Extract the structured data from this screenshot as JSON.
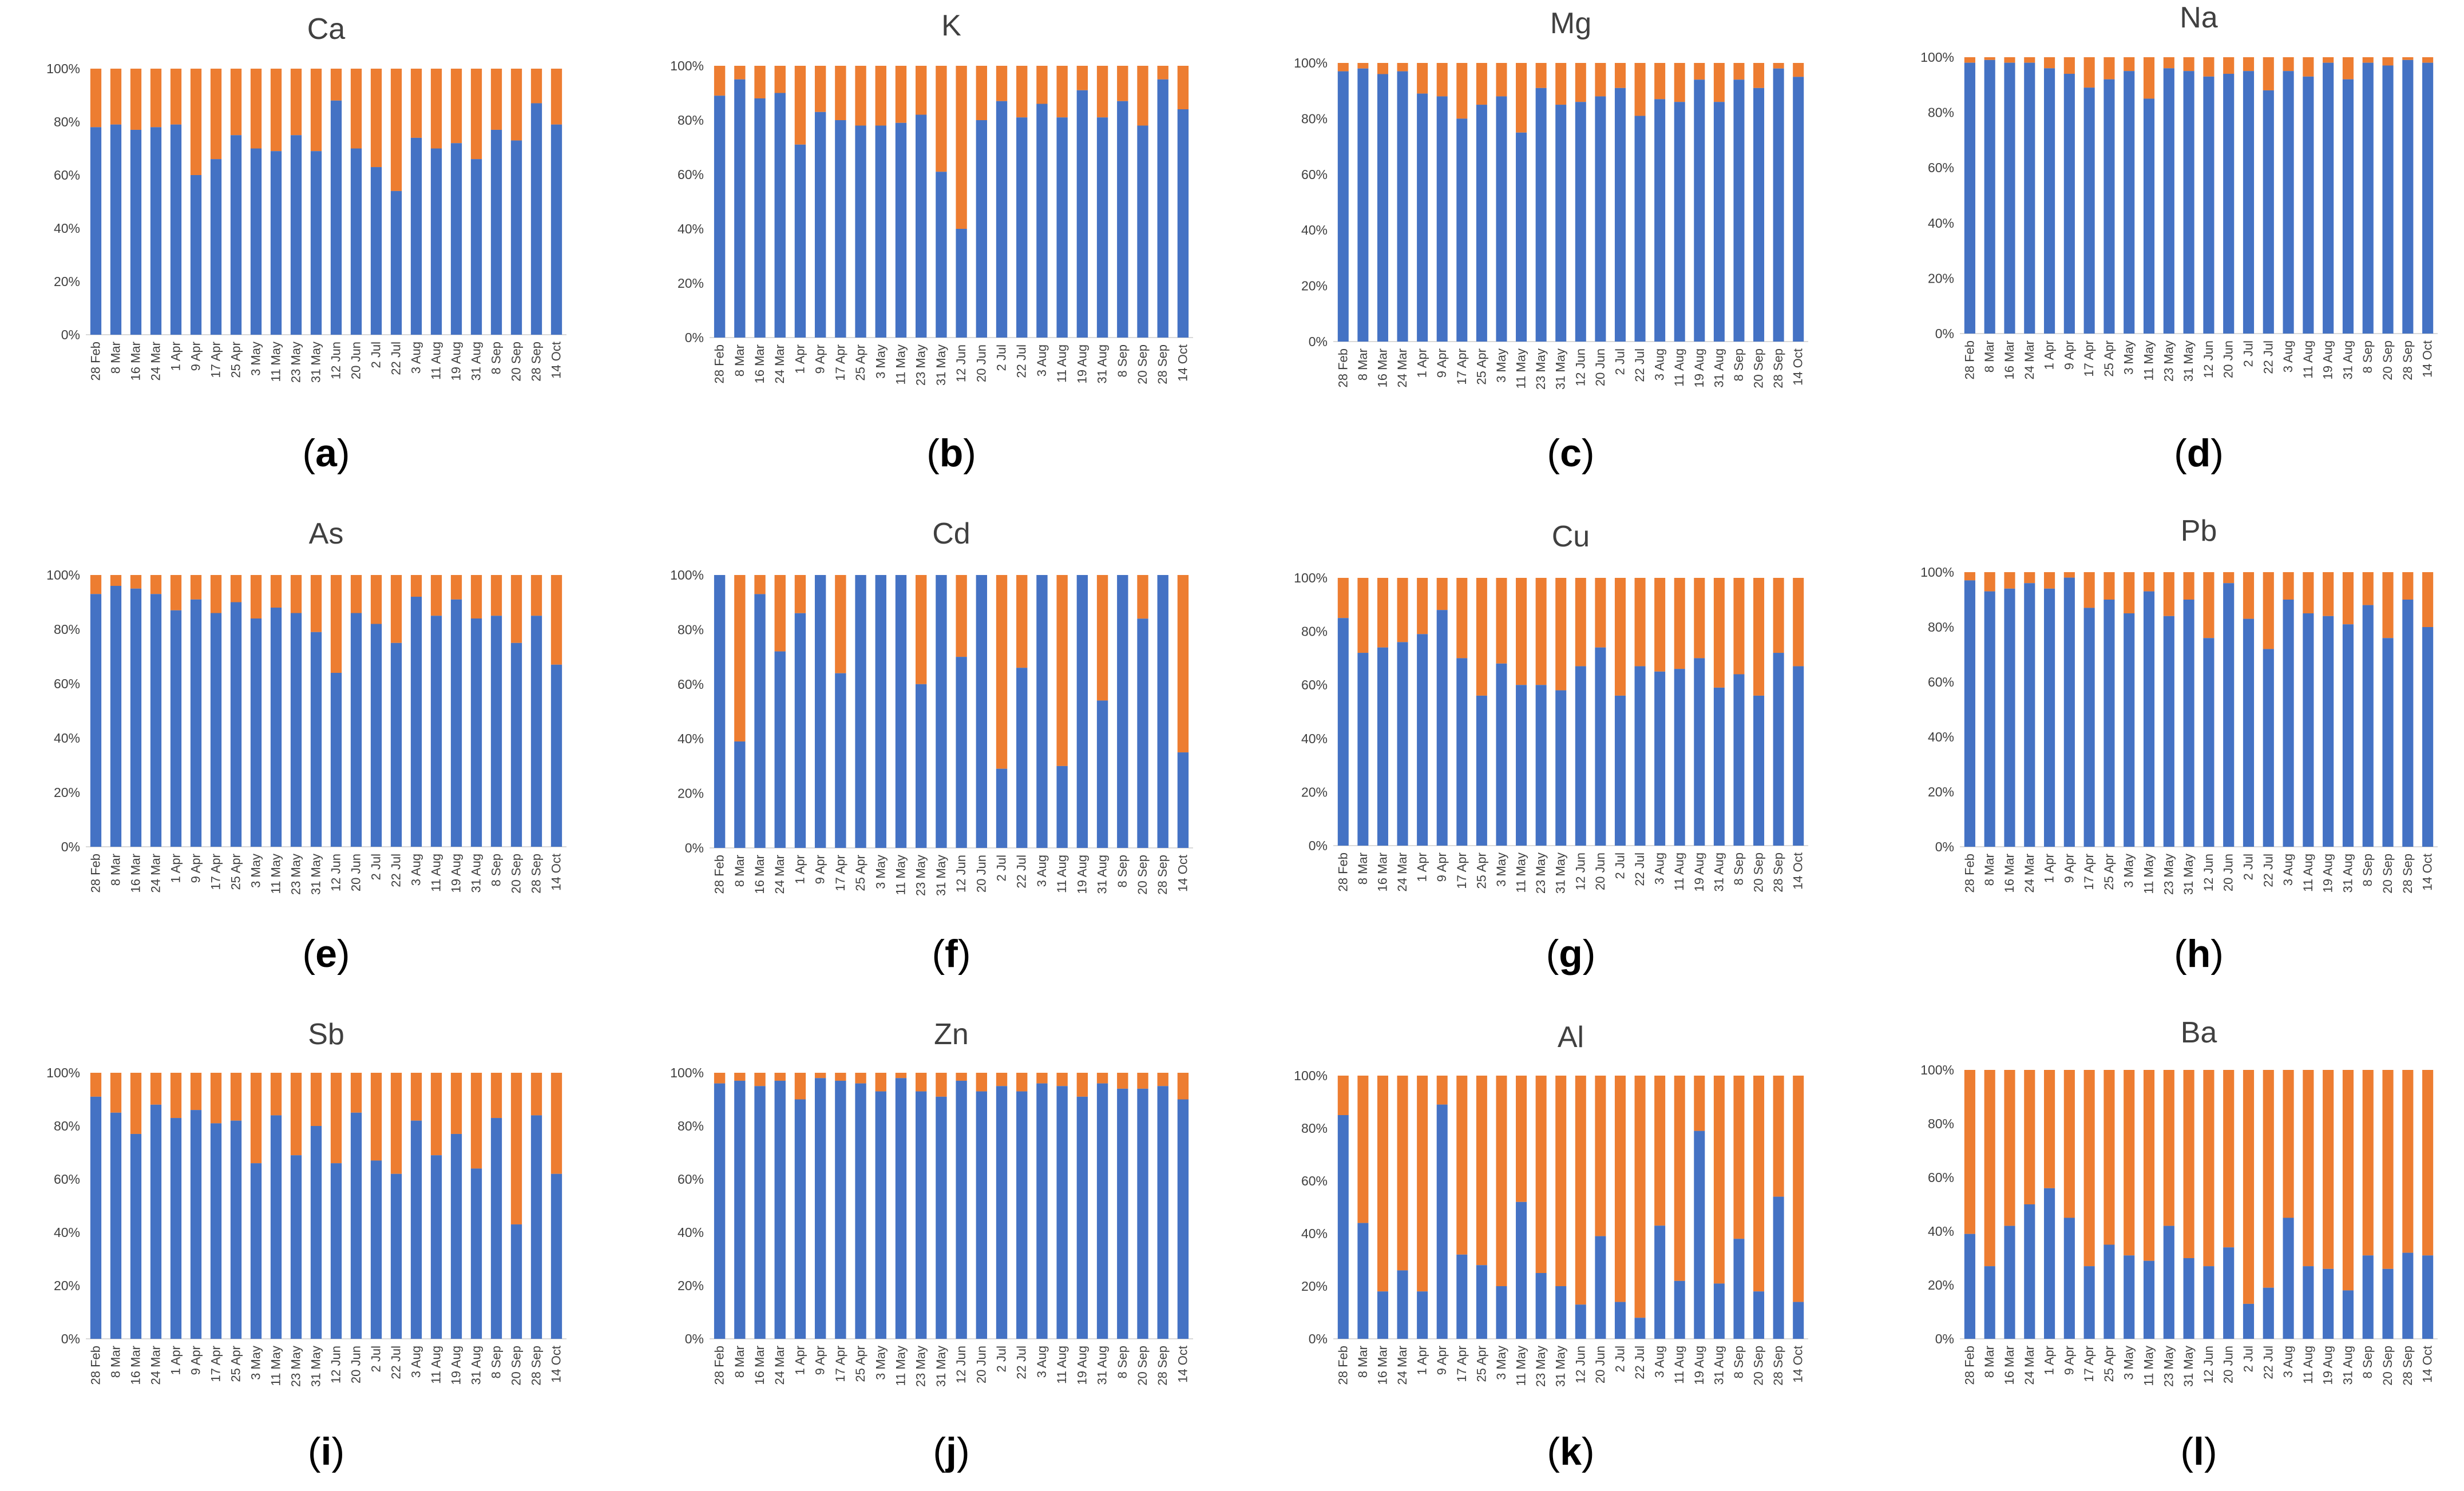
{
  "colors": {
    "primary": "#4472C4",
    "secondary": "#ED7D31",
    "axis": "#d9d9d9"
  },
  "chart_data": [
    {
      "type": "bar",
      "stacked": true,
      "title": "Ca",
      "panel_label": "a",
      "categories": [
        "28 Feb",
        "8 Mar",
        "16 Mar",
        "24 Mar",
        "1 Apr",
        "9 Apr",
        "17 Apr",
        "25 Apr",
        "3 May",
        "11 May",
        "23 May",
        "31 May",
        "12 Jun",
        "20 Jun",
        "2 Jul",
        "22 Jul",
        "3 Aug",
        "11 Aug",
        "19 Aug",
        "31 Aug",
        "8 Sep",
        "20 Sep",
        "28 Sep",
        "14 Oct"
      ],
      "yticks": [
        "0%",
        "20%",
        "40%",
        "60%",
        "80%",
        "100%"
      ],
      "ylim": [
        0,
        100
      ],
      "values": [
        78,
        79,
        77,
        78,
        79,
        60,
        66,
        75,
        70,
        69,
        75,
        69,
        88,
        70,
        63,
        54,
        74,
        70,
        72,
        66,
        77,
        73,
        87,
        79
      ]
    },
    {
      "type": "bar",
      "stacked": true,
      "title": "K",
      "panel_label": "b",
      "categories": [
        "28 Feb",
        "8 Mar",
        "16 Mar",
        "24 Mar",
        "1 Apr",
        "9 Apr",
        "17 Apr",
        "25 Apr",
        "3 May",
        "11 May",
        "23 May",
        "31 May",
        "12 Jun",
        "20 Jun",
        "2 Jul",
        "22 Jul",
        "3 Aug",
        "11 Aug",
        "19 Aug",
        "31 Aug",
        "8 Sep",
        "20 Sep",
        "28 Sep",
        "14 Oct"
      ],
      "yticks": [
        "0%",
        "20%",
        "40%",
        "60%",
        "80%",
        "100%"
      ],
      "ylim": [
        0,
        100
      ],
      "values": [
        89,
        95,
        88,
        90,
        71,
        83,
        80,
        78,
        78,
        79,
        82,
        61,
        40,
        80,
        87,
        81,
        86,
        81,
        91,
        81,
        87,
        78,
        95,
        84
      ]
    },
    {
      "type": "bar",
      "stacked": true,
      "title": "Mg",
      "panel_label": "c",
      "categories": [
        "28 Feb",
        "8 Mar",
        "16 Mar",
        "24 Mar",
        "1 Apr",
        "9 Apr",
        "17 Apr",
        "25 Apr",
        "3 May",
        "11 May",
        "23 May",
        "31 May",
        "12 Jun",
        "20 Jun",
        "2 Jul",
        "22 Jul",
        "3 Aug",
        "11 Aug",
        "19 Aug",
        "31 Aug",
        "8 Sep",
        "20 Sep",
        "28 Sep",
        "14 Oct"
      ],
      "yticks": [
        "0%",
        "20%",
        "40%",
        "60%",
        "80%",
        "100%"
      ],
      "ylim": [
        0,
        100
      ],
      "values": [
        97,
        98,
        96,
        97,
        89,
        88,
        80,
        85,
        88,
        75,
        91,
        85,
        86,
        88,
        91,
        81,
        87,
        86,
        94,
        86,
        94,
        91,
        98,
        95
      ]
    },
    {
      "type": "bar",
      "stacked": true,
      "title": "Na",
      "panel_label": "d",
      "categories": [
        "28 Feb",
        "8 Mar",
        "16 Mar",
        "24 Mar",
        "1 Apr",
        "9 Apr",
        "17 Apr",
        "25 Apr",
        "3 May",
        "11 May",
        "23 May",
        "31 May",
        "12 Jun",
        "20 Jun",
        "2 Jul",
        "22 Jul",
        "3 Aug",
        "11 Aug",
        "19 Aug",
        "31 Aug",
        "8 Sep",
        "20 Sep",
        "28 Sep",
        "14 Oct"
      ],
      "yticks": [
        "0%",
        "20%",
        "40%",
        "60%",
        "80%",
        "100%"
      ],
      "ylim": [
        0,
        100
      ],
      "values": [
        98,
        99,
        98,
        98,
        96,
        94,
        89,
        92,
        95,
        85,
        96,
        95,
        93,
        94,
        95,
        88,
        95,
        93,
        98,
        92,
        98,
        97,
        99,
        98
      ]
    },
    {
      "type": "bar",
      "stacked": true,
      "title": "As",
      "panel_label": "e",
      "categories": [
        "28 Feb",
        "8 Mar",
        "16 Mar",
        "24 Mar",
        "1 Apr",
        "9 Apr",
        "17 Apr",
        "25 Apr",
        "3 May",
        "11 May",
        "23 May",
        "31 May",
        "12 Jun",
        "20 Jun",
        "2 Jul",
        "22 Jul",
        "3 Aug",
        "11 Aug",
        "19 Aug",
        "31 Aug",
        "8 Sep",
        "20 Sep",
        "28 Sep",
        "14 Oct"
      ],
      "yticks": [
        "0%",
        "20%",
        "40%",
        "60%",
        "80%",
        "100%"
      ],
      "ylim": [
        0,
        100
      ],
      "values": [
        93,
        96,
        95,
        93,
        87,
        91,
        86,
        90,
        84,
        88,
        86,
        79,
        64,
        86,
        82,
        75,
        92,
        85,
        91,
        84,
        85,
        75,
        85,
        67
      ]
    },
    {
      "type": "bar",
      "stacked": true,
      "title": "Cd",
      "panel_label": "f",
      "categories": [
        "28 Feb",
        "8 Mar",
        "16 Mar",
        "24 Mar",
        "1 Apr",
        "9 Apr",
        "17 Apr",
        "25 Apr",
        "3 May",
        "11 May",
        "23 May",
        "31 May",
        "12 Jun",
        "20 Jun",
        "2 Jul",
        "22 Jul",
        "3 Aug",
        "11 Aug",
        "19 Aug",
        "31 Aug",
        "8 Sep",
        "20 Sep",
        "28 Sep",
        "14 Oct"
      ],
      "yticks": [
        "0%",
        "20%",
        "40%",
        "60%",
        "80%",
        "100%"
      ],
      "ylim": [
        0,
        100
      ],
      "values": [
        100,
        39,
        93,
        72,
        86,
        100,
        64,
        100,
        100,
        100,
        60,
        100,
        70,
        100,
        29,
        66,
        100,
        30,
        100,
        54,
        100,
        84,
        100,
        35
      ]
    },
    {
      "type": "bar",
      "stacked": true,
      "title": "Cu",
      "panel_label": "g",
      "categories": [
        "28 Feb",
        "8 Mar",
        "16 Mar",
        "24 Mar",
        "1 Apr",
        "9 Apr",
        "17 Apr",
        "25 Apr",
        "3 May",
        "11 May",
        "23 May",
        "31 May",
        "12 Jun",
        "20 Jun",
        "2 Jul",
        "22 Jul",
        "3 Aug",
        "11 Aug",
        "19 Aug",
        "31 Aug",
        "8 Sep",
        "20 Sep",
        "28 Sep",
        "14 Oct"
      ],
      "yticks": [
        "0%",
        "20%",
        "40%",
        "60%",
        "80%",
        "100%"
      ],
      "ylim": [
        0,
        100
      ],
      "values": [
        85,
        72,
        74,
        76,
        79,
        88,
        70,
        56,
        68,
        60,
        60,
        58,
        67,
        74,
        56,
        67,
        65,
        66,
        70,
        59,
        64,
        56,
        72,
        67
      ]
    },
    {
      "type": "bar",
      "stacked": true,
      "title": "Pb",
      "panel_label": "h",
      "categories": [
        "28 Feb",
        "8 Mar",
        "16 Mar",
        "24 Mar",
        "1 Apr",
        "9 Apr",
        "17 Apr",
        "25 Apr",
        "3 May",
        "11 May",
        "23 May",
        "31 May",
        "12 Jun",
        "20 Jun",
        "2 Jul",
        "22 Jul",
        "3 Aug",
        "11 Aug",
        "19 Aug",
        "31 Aug",
        "8 Sep",
        "20 Sep",
        "28 Sep",
        "14 Oct"
      ],
      "yticks": [
        "0%",
        "20%",
        "40%",
        "60%",
        "80%",
        "100%"
      ],
      "ylim": [
        0,
        100
      ],
      "values": [
        97,
        93,
        94,
        96,
        94,
        98,
        87,
        90,
        85,
        93,
        84,
        90,
        76,
        96,
        83,
        72,
        90,
        85,
        84,
        81,
        88,
        76,
        90,
        80
      ]
    },
    {
      "type": "bar",
      "stacked": true,
      "title": "Sb",
      "panel_label": "i",
      "categories": [
        "28 Feb",
        "8 Mar",
        "16 Mar",
        "24 Mar",
        "1 Apr",
        "9 Apr",
        "17 Apr",
        "25 Apr",
        "3 May",
        "11 May",
        "23 May",
        "31 May",
        "12 Jun",
        "20 Jun",
        "2 Jul",
        "22 Jul",
        "3 Aug",
        "11 Aug",
        "19 Aug",
        "31 Aug",
        "8 Sep",
        "20 Sep",
        "28 Sep",
        "14 Oct"
      ],
      "yticks": [
        "0%",
        "20%",
        "40%",
        "60%",
        "80%",
        "100%"
      ],
      "ylim": [
        0,
        100
      ],
      "values": [
        91,
        85,
        77,
        88,
        83,
        86,
        81,
        82,
        66,
        84,
        69,
        80,
        66,
        85,
        67,
        62,
        82,
        69,
        77,
        64,
        83,
        43,
        84,
        62
      ]
    },
    {
      "type": "bar",
      "stacked": true,
      "title": "Zn",
      "panel_label": "j",
      "categories": [
        "28 Feb",
        "8 Mar",
        "16 Mar",
        "24 Mar",
        "1 Apr",
        "9 Apr",
        "17 Apr",
        "25 Apr",
        "3 May",
        "11 May",
        "23 May",
        "31 May",
        "12 Jun",
        "20 Jun",
        "2 Jul",
        "22 Jul",
        "3 Aug",
        "11 Aug",
        "19 Aug",
        "31 Aug",
        "8 Sep",
        "20 Sep",
        "28 Sep",
        "14 Oct"
      ],
      "yticks": [
        "0%",
        "20%",
        "40%",
        "60%",
        "80%",
        "100%"
      ],
      "ylim": [
        0,
        100
      ],
      "values": [
        96,
        97,
        95,
        97,
        90,
        98,
        97,
        96,
        93,
        98,
        93,
        91,
        97,
        93,
        95,
        93,
        96,
        95,
        91,
        96,
        94,
        94,
        95,
        90
      ]
    },
    {
      "type": "bar",
      "stacked": true,
      "title": "Al",
      "panel_label": "k",
      "categories": [
        "28 Feb",
        "8 Mar",
        "16 Mar",
        "24 Mar",
        "1 Apr",
        "9 Apr",
        "17 Apr",
        "25 Apr",
        "3 May",
        "11 May",
        "23 May",
        "31 May",
        "12 Jun",
        "20 Jun",
        "2 Jul",
        "22 Jul",
        "3 Aug",
        "11 Aug",
        "19 Aug",
        "31 Aug",
        "8 Sep",
        "20 Sep",
        "28 Sep",
        "14 Oct"
      ],
      "yticks": [
        "0%",
        "20%",
        "40%",
        "60%",
        "80%",
        "100%"
      ],
      "ylim": [
        0,
        100
      ],
      "values": [
        85,
        44,
        18,
        26,
        18,
        89,
        32,
        28,
        20,
        52,
        25,
        20,
        13,
        39,
        14,
        8,
        43,
        22,
        79,
        21,
        38,
        18,
        54,
        14
      ]
    },
    {
      "type": "bar",
      "stacked": true,
      "title": "Ba",
      "panel_label": "l",
      "categories": [
        "28 Feb",
        "8 Mar",
        "16 Mar",
        "24 Mar",
        "1 Apr",
        "9 Apr",
        "17 Apr",
        "25 Apr",
        "3 May",
        "11 May",
        "23 May",
        "31 May",
        "12 Jun",
        "20 Jun",
        "2 Jul",
        "22 Jul",
        "3 Aug",
        "11 Aug",
        "19 Aug",
        "31 Aug",
        "8 Sep",
        "20 Sep",
        "28 Sep",
        "14 Oct"
      ],
      "yticks": [
        "0%",
        "20%",
        "40%",
        "60%",
        "80%",
        "100%"
      ],
      "ylim": [
        0,
        100
      ],
      "values": [
        39,
        27,
        42,
        50,
        56,
        45,
        27,
        35,
        31,
        29,
        42,
        30,
        27,
        34,
        13,
        19,
        45,
        27,
        26,
        18,
        31,
        26,
        32,
        31
      ]
    }
  ]
}
